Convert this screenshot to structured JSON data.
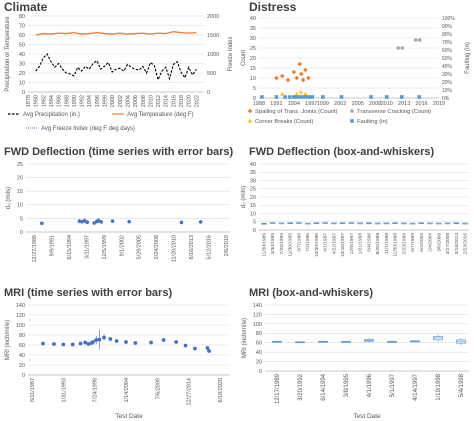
{
  "chart_data": [
    {
      "id": "climate",
      "type": "line",
      "title": "Climate",
      "ylabel": "Precipitation or Temperature",
      "y2label": "Freeze Index",
      "ylim": [
        0,
        80
      ],
      "yticks": [
        0,
        10,
        20,
        30,
        40,
        50,
        60,
        70,
        80
      ],
      "y2lim": [
        0,
        2000
      ],
      "y2ticks": [
        0,
        500,
        1000,
        1500,
        2000
      ],
      "xlim": [
        1978,
        2024
      ],
      "xticks": [
        1978,
        1980,
        1982,
        1984,
        1986,
        1988,
        1990,
        1992,
        1994,
        1996,
        1998,
        2000,
        2002,
        2004,
        2006,
        2008,
        2010,
        2012,
        2014,
        2016,
        2018,
        2020,
        2022
      ],
      "grid": true,
      "legend": [
        "Avg Precipitation (in.)",
        "Avg Temperature (deg F)",
        "Avg Freeze Index (deg F deg days)"
      ],
      "series": [
        {
          "name": "Avg Precipitation (in.)",
          "color": "#000000",
          "style": "dashed",
          "x": [
            1980,
            1981,
            1982,
            1983,
            1984,
            1985,
            1986,
            1987,
            1988,
            1989,
            1990,
            1991,
            1992,
            1993,
            1994,
            1995,
            1996,
            1997,
            1998,
            1999,
            2000,
            2001,
            2002,
            2003,
            2004,
            2005,
            2006,
            2007,
            2008,
            2009,
            2010,
            2011,
            2012,
            2013,
            2014,
            2015,
            2016,
            2017,
            2018,
            2019,
            2020,
            2021,
            2022
          ],
          "y": [
            22,
            27,
            36,
            40,
            32,
            26,
            30,
            24,
            20,
            19,
            17,
            26,
            22,
            27,
            24,
            30,
            33,
            24,
            27,
            31,
            21,
            24,
            25,
            22,
            29,
            26,
            24,
            23,
            27,
            20,
            31,
            28,
            13,
            22,
            26,
            14,
            29,
            32,
            21,
            15,
            26,
            18,
            24
          ]
        },
        {
          "name": "Avg Temperature (deg F)",
          "color": "#ed7d31",
          "style": "solid",
          "x": [
            1980,
            1982,
            1984,
            1986,
            1988,
            1990,
            1992,
            1994,
            1996,
            1998,
            2000,
            2002,
            2004,
            2006,
            2008,
            2010,
            2012,
            2014,
            2016,
            2018,
            2020,
            2022
          ],
          "y": [
            60,
            61.5,
            61,
            62,
            61.5,
            62.5,
            61,
            61.5,
            62.5,
            61.5,
            61,
            62,
            61,
            61.5,
            62,
            61,
            62,
            61.5,
            63.5,
            62.5,
            62,
            62.5
          ]
        },
        {
          "name": "Avg Freeze Index (deg F deg days)",
          "color": "#5b9bd5",
          "style": "dotted",
          "x": [],
          "y": []
        }
      ]
    },
    {
      "id": "distress",
      "type": "scatter",
      "title": "Distress",
      "ylabel": "Count",
      "y2label": "Faulting (in)",
      "ylim": [
        0,
        40
      ],
      "yticks": [
        0,
        5,
        10,
        15,
        20,
        25,
        30,
        35,
        40
      ],
      "y2ticks": [
        "0%",
        "10%",
        "20%",
        "30%",
        "40%",
        "50%",
        "60%",
        "70%",
        "80%",
        "90%",
        "100%"
      ],
      "xlim": [
        1988,
        2019
      ],
      "xticks": [
        1988,
        1991,
        1994,
        1997,
        1999,
        2002,
        2005,
        2008,
        2010,
        2013,
        2016,
        2019
      ],
      "grid": true,
      "legend": [
        "Spalling of Trans. Joints (Count)",
        "Transverse Cracking (Count)",
        "Corner Breaks (Count)",
        "Faulting (in)"
      ],
      "series": [
        {
          "name": "Spalling of Trans. Joints (Count)",
          "color": "#ed7d31",
          "marker": "diamond",
          "x": [
            1991,
            1992,
            1993,
            1994,
            1994.5,
            1995,
            1995.3,
            1995.6,
            1996,
            1996.5
          ],
          "y": [
            10,
            11,
            9,
            13,
            10,
            17,
            12,
            9,
            14,
            10
          ]
        },
        {
          "name": "Transverse Cracking (Count)",
          "color": "#a5a5a5",
          "marker": "circle",
          "x": [
            2012,
            2012.7,
            2015,
            2015.7
          ],
          "y": [
            25,
            25,
            29,
            29
          ]
        },
        {
          "name": "Corner Breaks (Count)",
          "color": "#ffc000",
          "marker": "triangle",
          "x": [
            1992,
            1994.5,
            1995.2,
            1996
          ],
          "y": [
            2,
            2,
            3,
            2
          ]
        },
        {
          "name": "Faulting (in)",
          "color": "#5b9bd5",
          "marker": "square",
          "x": [
            1988.5,
            1991,
            1992.5,
            1993.3,
            1994,
            1994.5,
            1995,
            1995.5,
            1996,
            1996.6,
            1997.2,
            1999,
            2002.2,
            2007.3,
            2010,
            2012.6,
            2015.6
          ],
          "y": [
            0.5,
            0.5,
            0.5,
            0.5,
            0.5,
            0.5,
            0.5,
            0.5,
            0.5,
            0.5,
            0.5,
            0.5,
            0.5,
            0.5,
            0.5,
            0.5,
            0.5
          ]
        }
      ]
    },
    {
      "id": "fwd-ts",
      "type": "scatter",
      "title": "FWD Deflection (time series with error bars)",
      "ylabel": "d₀ (mils)",
      "ylim": [
        0,
        25
      ],
      "yticks": [
        0,
        5,
        10,
        15,
        20,
        25
      ],
      "categories": [
        "12/27/1988",
        "9/9/1991",
        "6/15/1994",
        "3/11/1997",
        "12/5/1999",
        "9/1/2002",
        "5/29/2005",
        "2/24/2008",
        "11/20/2010",
        "8/16/2013",
        "5/12/2016",
        "2/6/2019"
      ],
      "grid": true,
      "points": {
        "color": "#4472c4",
        "x": [
          0.45,
          2.6,
          2.75,
          2.9,
          3.05,
          3.45,
          3.6,
          3.7,
          3.85,
          4.5,
          5.45,
          8.45,
          9.55
        ],
        "y": [
          3.2,
          4.0,
          3.8,
          4.1,
          3.6,
          3.3,
          3.9,
          4.2,
          3.7,
          4.0,
          3.8,
          3.5,
          3.7
        ],
        "err": [
          0.3,
          0.8,
          0.7,
          0.9,
          0.6,
          0.5,
          0.8,
          0.9,
          0.6,
          0.4,
          0.3,
          0.3,
          0.3
        ]
      }
    },
    {
      "id": "fwd-box",
      "type": "box",
      "title": "FWD Deflection (box-and-whiskers)",
      "ylabel": "d₀ (mils)",
      "ylim": [
        0,
        40
      ],
      "yticks": [
        0,
        5,
        10,
        15,
        20,
        25,
        30,
        35,
        40
      ],
      "categories": [
        "11/30/1989",
        "3/30/1995",
        "7/26/1995",
        "11/30/1995",
        "3/7/1996",
        "7/2/1996",
        "10/30/1996",
        "4/1/1997",
        "4/22/1997",
        "10/16/1997",
        "12/5/1997",
        "1/21/1998",
        "5/4/1998",
        "8/25/1998",
        "11/1/1998",
        "11/30/1998",
        "2/23/1999",
        "5/7/1999",
        "6/4/2003",
        "2/4/2004",
        "3/6/2006",
        "3/27/2008",
        "3/18/2013",
        "2/23/2016"
      ],
      "grid": true,
      "color": "#5b9bd5",
      "boxes": [
        [
          3.2,
          3.5,
          3.8,
          4.1,
          4.4
        ],
        [
          3.6,
          3.9,
          4.2,
          4.5,
          4.9
        ],
        [
          3.4,
          3.7,
          4.0,
          4.3,
          4.6
        ],
        [
          3.5,
          3.8,
          4.1,
          4.4,
          4.8
        ],
        [
          3.6,
          3.9,
          4.2,
          4.5,
          4.9
        ],
        [
          3.3,
          3.6,
          3.9,
          4.2,
          4.5
        ],
        [
          3.5,
          3.8,
          4.1,
          4.4,
          4.7
        ],
        [
          3.6,
          3.9,
          4.2,
          4.5,
          4.9
        ],
        [
          3.4,
          3.7,
          4.0,
          4.3,
          4.6
        ],
        [
          3.5,
          3.8,
          4.1,
          4.4,
          4.8
        ],
        [
          3.6,
          3.9,
          4.2,
          4.5,
          4.9
        ],
        [
          3.4,
          3.7,
          4.0,
          4.3,
          4.6
        ],
        [
          3.5,
          3.8,
          4.1,
          4.4,
          4.7
        ],
        [
          3.3,
          3.6,
          3.9,
          4.2,
          4.5
        ],
        [
          3.4,
          3.7,
          4.0,
          4.3,
          4.6
        ],
        [
          3.5,
          3.8,
          4.1,
          4.4,
          4.7
        ],
        [
          3.4,
          3.7,
          4.0,
          4.3,
          4.6
        ],
        [
          3.3,
          3.6,
          3.9,
          4.2,
          4.5
        ],
        [
          3.5,
          3.8,
          4.1,
          4.4,
          4.7
        ],
        [
          3.4,
          3.7,
          4.0,
          4.3,
          4.6
        ],
        [
          3.3,
          3.6,
          3.9,
          4.2,
          4.5
        ],
        [
          3.4,
          3.7,
          4.0,
          4.3,
          4.6
        ],
        [
          3.5,
          3.8,
          4.1,
          4.4,
          4.7
        ],
        [
          3.3,
          3.6,
          3.9,
          4.2,
          4.5
        ]
      ]
    },
    {
      "id": "mri-ts",
      "type": "scatter",
      "title": "MRI (time series with error bars)",
      "ylabel": "MRI (inch/mile)",
      "xlabel": "Test Date",
      "ylim": [
        0,
        140
      ],
      "yticks": [
        0,
        20,
        40,
        60,
        80,
        100,
        120,
        140
      ],
      "categories": [
        "8/11/1987",
        "1/31/1993",
        "7/24/1998",
        "1/14/2004",
        "7/6/2009",
        "12/27/2014",
        "6/18/2020"
      ],
      "grid": true,
      "points": {
        "color": "#4472c4",
        "x": [
          0.35,
          0.7,
          1.0,
          1.3,
          1.55,
          1.7,
          1.8,
          1.9,
          1.95,
          2.05,
          2.15,
          2.3,
          2.5,
          2.7,
          3.0,
          3.3,
          3.8,
          4.2,
          4.6,
          4.9,
          5.2,
          5.6,
          5.65
        ],
        "y": [
          63,
          62,
          61,
          61,
          63,
          65,
          62,
          64,
          66,
          70,
          71,
          75,
          72,
          68,
          66,
          64,
          65,
          70,
          66,
          59,
          53,
          54,
          48
        ],
        "err": [
          1,
          1,
          1,
          1,
          2,
          3,
          2,
          3,
          2,
          8,
          20,
          6,
          3,
          2,
          1,
          1,
          1,
          2,
          1,
          2,
          3,
          2,
          3
        ]
      }
    },
    {
      "id": "mri-box",
      "type": "box",
      "title": "MRI (box-and-whiskers)",
      "ylabel": "MRI (inch/mile)",
      "xlabel": "Test Date",
      "ylim": [
        0,
        140
      ],
      "yticks": [
        0,
        20,
        40,
        60,
        80,
        100,
        120,
        140
      ],
      "categories": [
        "12/17/1989",
        "3/20/1992",
        "6/14/1994",
        "3/8/1995",
        "4/1/1996",
        "5/1/1997",
        "4/14/1997",
        "1/19/1998",
        "5/4/1998"
      ],
      "grid": true,
      "color": "#5b9bd5",
      "boxes": [
        [
          60,
          61,
          62,
          63,
          64
        ],
        [
          59,
          60,
          61,
          62,
          63
        ],
        [
          60,
          61,
          62,
          63,
          64
        ],
        [
          60,
          61,
          62,
          63,
          64
        ],
        [
          61,
          63,
          65,
          67,
          70
        ],
        [
          60,
          61,
          62,
          63,
          64
        ],
        [
          61,
          62,
          63,
          64,
          65
        ],
        [
          62,
          66,
          70,
          73,
          77
        ],
        [
          55,
          59,
          63,
          66,
          70
        ]
      ]
    }
  ]
}
